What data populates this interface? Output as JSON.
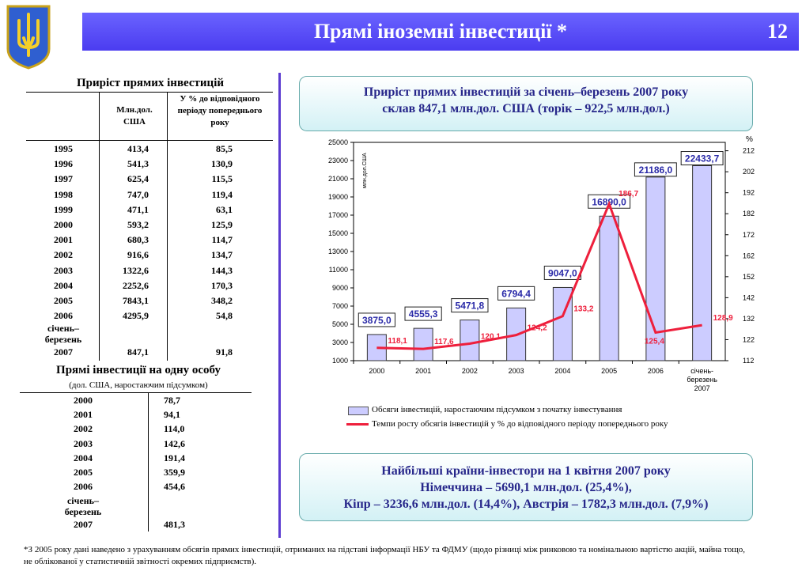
{
  "header": {
    "title": "Прямі іноземні інвестиції *",
    "slide_number": "12"
  },
  "table_growth": {
    "title": "Приріст прямих інвестицій",
    "col_mln": "Млн.дол. США",
    "col_pct": "У % до відповідного періоду попереднього року",
    "rows": [
      {
        "year": "1995",
        "mln": "413,4",
        "pct": "85,5"
      },
      {
        "year": "1996",
        "mln": "541,3",
        "pct": "130,9"
      },
      {
        "year": "1997",
        "mln": "625,4",
        "pct": "115,5"
      },
      {
        "year": "1998",
        "mln": "747,0",
        "pct": "119,4"
      },
      {
        "year": "1999",
        "mln": "471,1",
        "pct": "63,1"
      },
      {
        "year": "2000",
        "mln": "593,2",
        "pct": "125,9"
      },
      {
        "year": "2001",
        "mln": "680,3",
        "pct": "114,7"
      },
      {
        "year": "2002",
        "mln": "916,6",
        "pct": "134,7"
      },
      {
        "year": "2003",
        "mln": "1322,6",
        "pct": "144,3"
      },
      {
        "year": "2004",
        "mln": "2252,6",
        "pct": "170,3"
      },
      {
        "year": "2005",
        "mln": "7843,1",
        "pct": "348,2"
      },
      {
        "year": "2006",
        "mln": "4295,9",
        "pct": "54,8"
      }
    ],
    "last_row": {
      "label1": "січень–",
      "label2": "березень",
      "label3": "2007",
      "mln": "847,1",
      "pct": "91,8"
    }
  },
  "table_per_capita": {
    "title": "Прямі інвестиції на одну особу",
    "subtitle": "(дол. США, наростаючим підсумком)",
    "rows": [
      {
        "year": "2000",
        "value": "78,7"
      },
      {
        "year": "2001",
        "value": "94,1"
      },
      {
        "year": "2002",
        "value": "114,0"
      },
      {
        "year": "2003",
        "value": "142,6"
      },
      {
        "year": "2004",
        "value": "191,4"
      },
      {
        "year": "2005",
        "value": "359,9"
      },
      {
        "year": "2006",
        "value": "454,6"
      }
    ],
    "last_row": {
      "label1": "січень–",
      "label2": "березень",
      "label3": "2007",
      "value": "481,3"
    }
  },
  "box_top": {
    "line1": "Приріст прямих інвестицій за січень–березень 2007 року",
    "line2": "склав 847,1 млн.дол. США (торік – 922,5 млн.дол.)"
  },
  "box_bottom": {
    "line1": "Найбільші країни-інвестори на 1 квітня 2007 року",
    "line2": "Німеччина – 5690,1 млн.дол. (25,4%),",
    "line3": "Кіпр – 3236,6 млн.дол. (14,4%), Австрія – 1782,3 млн.дол. (7,9%)"
  },
  "colors": {
    "title_bar": "#5548f5",
    "bar_fill": "#ccccff",
    "line": "#ee1f3c",
    "bar_label": "#2a2aa8",
    "divider": "#5b3bd0"
  },
  "chart_data": {
    "type": "bar+line",
    "categories": [
      "2000",
      "2001",
      "2002",
      "2003",
      "2004",
      "2005",
      "2006",
      "січень-березень 2007"
    ],
    "category_labels": [
      [
        "2000"
      ],
      [
        "2001"
      ],
      [
        "2002"
      ],
      [
        "2003"
      ],
      [
        "2004"
      ],
      [
        "2005"
      ],
      [
        "2006"
      ],
      [
        "січень-",
        "березень",
        "2007"
      ]
    ],
    "series": [
      {
        "name": "Обсяги інвестицій, наростаючим підсумком з початку інвестування",
        "type": "bar",
        "axis": "left",
        "values": [
          3875.0,
          4555.3,
          5471.8,
          6794.4,
          9047.0,
          16890.0,
          21186.0,
          22433.7
        ],
        "labels": [
          "3875,0",
          "4555,3",
          "5471,8",
          "6794,4",
          "9047,0",
          "16890,0",
          "21186,0",
          "22433,7"
        ]
      },
      {
        "name": "Темпи росту обсягів інвестицій у % до відповідного періоду попереднього року",
        "type": "line",
        "axis": "right",
        "values": [
          118.1,
          117.6,
          120.1,
          124.2,
          133.2,
          186.7,
          125.4,
          128.9
        ],
        "labels": [
          "118,1",
          "117,6",
          "120,1",
          "124,2",
          "133,2",
          "186,7",
          "125,4",
          "128,9"
        ]
      }
    ],
    "ylabel": "млн.дол.США",
    "y2label": "%",
    "ylim": [
      1000,
      25000
    ],
    "yticks": [
      1000,
      3000,
      5000,
      7000,
      9000,
      11000,
      13000,
      15000,
      17000,
      19000,
      21000,
      23000,
      25000
    ],
    "y2lim": [
      112,
      216
    ],
    "y2ticks": [
      112,
      122,
      132,
      142,
      152,
      162,
      172,
      182,
      192,
      202,
      212
    ]
  },
  "footnote": "*З 2005 року дані наведено з урахуванням обсягів прямих інвестицій, отриманих на підставі інформації НБУ та ФДМУ (щодо різниці між ринковою та номінальною вартістю акцій, майна тощо, не облікованої у статистичній звітності окремих підприємств)."
}
